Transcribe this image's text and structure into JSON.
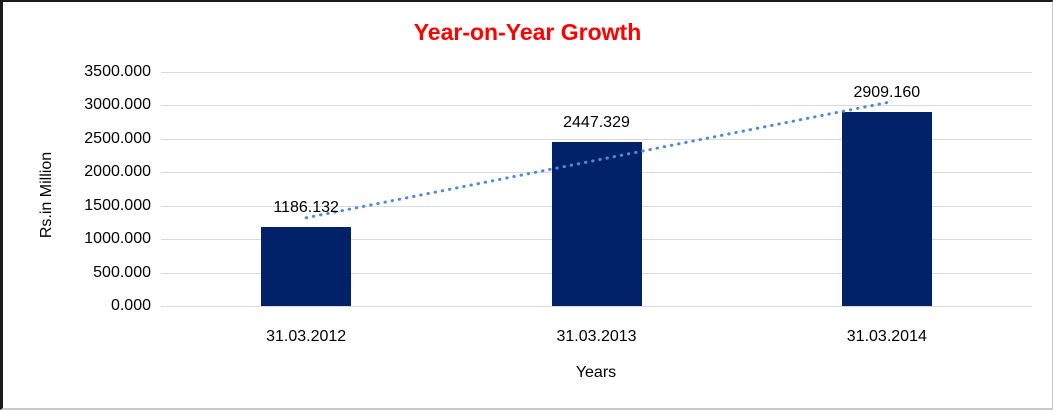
{
  "chart_data": {
    "type": "bar",
    "title": "Year-on-Year Growth",
    "xlabel": "Years",
    "ylabel": "Rs.in Million",
    "categories": [
      "31.03.2012",
      "31.03.2013",
      "31.03.2014"
    ],
    "values": [
      1186.132,
      2447.329,
      2909.16
    ],
    "data_labels": [
      "1186.132",
      "2447.329",
      "2909.160"
    ],
    "ylim": [
      0,
      3500
    ],
    "ytick_step": 500,
    "ytick_labels": [
      "0.000",
      "500.000",
      "1000.000",
      "1500.000",
      "2000.000",
      "2500.000",
      "3000.000",
      "3500.000"
    ],
    "grid": true,
    "legend": "none",
    "trendline": {
      "type": "linear",
      "style": "dotted"
    },
    "colors": {
      "bar": "#012169",
      "trendline": "#4f8bd5",
      "title": "#ff0000",
      "gridline": "#d9d9d9",
      "text": "#000000"
    }
  }
}
